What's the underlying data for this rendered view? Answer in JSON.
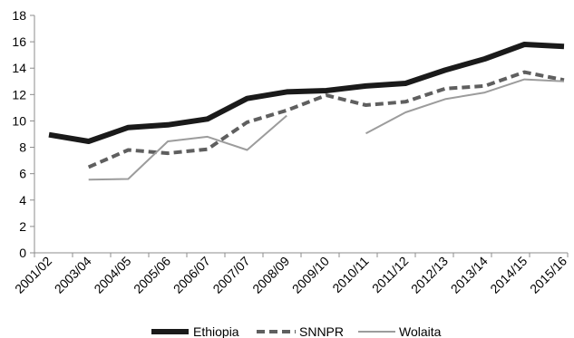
{
  "chart_data": {
    "type": "line",
    "title": "",
    "xlabel": "",
    "ylabel": "",
    "categories": [
      "2001/02",
      "2003/04",
      "2004/05",
      "2005/06",
      "2006/07",
      "2007/07",
      "2008/09",
      "2009/10",
      "2010/11",
      "2011/12",
      "2012/13",
      "2013/14",
      "2014/15",
      "2015/16"
    ],
    "ylim": [
      0,
      18
    ],
    "yticks": [
      0,
      2,
      4,
      6,
      8,
      10,
      12,
      14,
      16,
      18
    ],
    "grid": false,
    "legend_position": "bottom",
    "series": [
      {
        "name": "Ethiopia",
        "style": "solid-thick",
        "color": "#1a1a1a",
        "values": [
          8.95,
          8.45,
          9.5,
          9.7,
          10.15,
          11.7,
          12.2,
          12.3,
          12.65,
          12.85,
          13.85,
          14.7,
          15.8,
          15.65
        ]
      },
      {
        "name": "SNNPR",
        "style": "dashed",
        "color": "#5f5f5f",
        "values": [
          null,
          6.5,
          7.8,
          7.55,
          7.85,
          9.9,
          10.8,
          11.95,
          11.2,
          11.45,
          12.45,
          12.65,
          13.7,
          13.1
        ]
      },
      {
        "name": "Wolaita",
        "style": "solid-thin",
        "color": "#9c9c9c",
        "values": [
          null,
          5.55,
          5.6,
          8.45,
          8.8,
          7.8,
          10.4,
          null,
          9.05,
          10.65,
          11.65,
          12.15,
          13.15,
          13.0
        ]
      }
    ]
  }
}
